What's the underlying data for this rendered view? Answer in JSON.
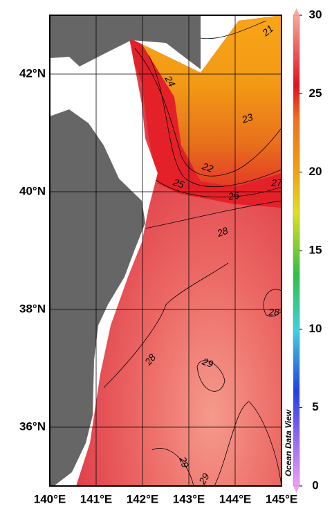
{
  "map": {
    "xlim": [
      140,
      145
    ],
    "ylim": [
      35,
      43
    ],
    "xticks": [
      {
        "value": 140,
        "label": "140°E"
      },
      {
        "value": 141,
        "label": "141°E"
      },
      {
        "value": 142,
        "label": "142°E"
      },
      {
        "value": 143,
        "label": "143°E"
      },
      {
        "value": 144,
        "label": "144°E"
      },
      {
        "value": 145,
        "label": "145°E"
      }
    ],
    "yticks": [
      {
        "value": 36,
        "label": "36°N"
      },
      {
        "value": 38,
        "label": "38°N"
      },
      {
        "value": 40,
        "label": "40°N"
      },
      {
        "value": 42,
        "label": "42°N"
      }
    ],
    "colorbar": {
      "lim": [
        0,
        30
      ],
      "ticks": [
        0,
        5,
        10,
        15,
        20,
        25,
        30
      ]
    },
    "contour_labels": [
      21,
      24,
      23,
      22,
      25,
      26,
      27,
      28,
      28,
      28,
      29,
      29,
      29
    ],
    "watermark": "Ocean Data View"
  }
}
